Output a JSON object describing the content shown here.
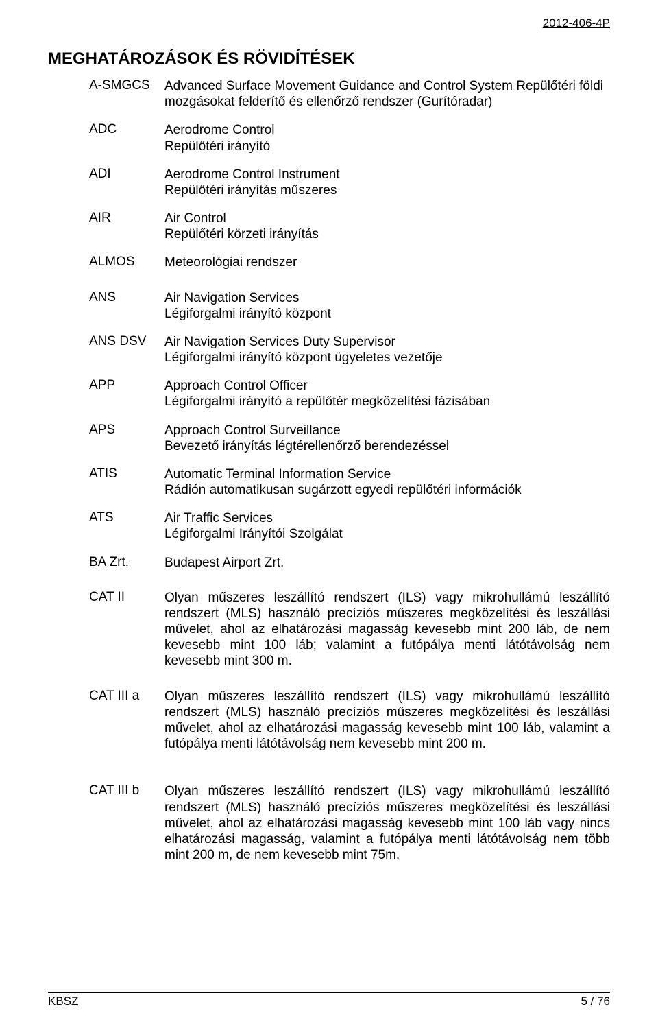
{
  "doc_id": "2012-406-4P",
  "title": "MEGHATÁROZÁSOK ÉS RÖVIDÍTÉSEK",
  "entries": [
    {
      "abbr": "A-SMGCS",
      "def": "Advanced Surface Movement Guidance and Control System Repülőtéri földi mozgásokat felderítő és ellenőrző rendszer (Gurítóradar)",
      "justify": false
    },
    {
      "abbr": "ADC",
      "def": "Aerodrome Control\nRepülőtéri irányító",
      "justify": false
    },
    {
      "abbr": "ADI",
      "def": "Aerodrome Control Instrument\nRepülőtéri irányítás műszeres",
      "justify": false
    },
    {
      "abbr": "AIR",
      "def": "Air Control\nRepülőtéri körzeti irányítás",
      "justify": false
    },
    {
      "abbr": "ALMOS",
      "def": "Meteorológiai rendszer",
      "justify": false,
      "gap": true
    },
    {
      "abbr": "ANS",
      "def": "Air Navigation Services\nLégiforgalmi irányító központ",
      "justify": false
    },
    {
      "abbr": "ANS DSV",
      "def": "Air Navigation Services Duty Supervisor\nLégiforgalmi irányító központ ügyeletes vezetője",
      "justify": false
    },
    {
      "abbr": "APP",
      "def": "Approach Control Officer\nLégiforgalmi irányító a repülőtér megközelítési fázisában",
      "justify": false
    },
    {
      "abbr": "APS",
      "def": "Approach Control Surveillance\nBevezető irányítás légtérellenőrző berendezéssel",
      "justify": false
    },
    {
      "abbr": "ATIS",
      "def": "Automatic Terminal Information Service\nRádión automatikusan sugárzott egyedi repülőtéri információk",
      "justify": false
    },
    {
      "abbr": "ATS",
      "def": "Air Traffic Services\nLégiforgalmi Irányítói Szolgálat",
      "justify": false
    },
    {
      "abbr": "BA Zrt.",
      "def": "Budapest Airport Zrt.",
      "justify": false,
      "gap": true
    },
    {
      "abbr": "CAT II",
      "def": "Olyan műszeres leszállító rendszert (ILS) vagy mikrohullámú leszállító rendszert (MLS) használó precíziós műszeres megközelítési és leszállási  művelet, ahol az elhatározási magasság kevesebb mint 200 láb, de nem kevesebb mint 100 láb; valamint a futópálya menti látótávolság nem kevesebb mint 300 m.",
      "justify": true,
      "gap": true
    },
    {
      "abbr": "CAT III a",
      "def": "Olyan műszeres leszállító rendszert (ILS) vagy mikrohullámú leszállító rendszert (MLS) használó precíziós műszeres megközelítési és leszállási  művelet, ahol az elhatározási magasság kevesebb mint 100 láb, valamint a futópálya menti látótávolság nem kevesebb mint 200 m.",
      "justify": true,
      "gap": true,
      "bigGap": true
    },
    {
      "abbr": "CAT III b",
      "def": "Olyan műszeres leszállító rendszert (ILS) vagy mikrohullámú leszállító rendszert (MLS) használó precíziós műszeres megközelítési és leszállási  művelet, ahol az elhatározási magasság kevesebb mint 100 láb vagy nincs elhatározási magasság, valamint a futópálya menti látótávolság nem több mint 200 m, de nem kevesebb mint 75m.",
      "justify": true
    }
  ],
  "footer_left": "KBSZ",
  "footer_right": "5 / 76"
}
